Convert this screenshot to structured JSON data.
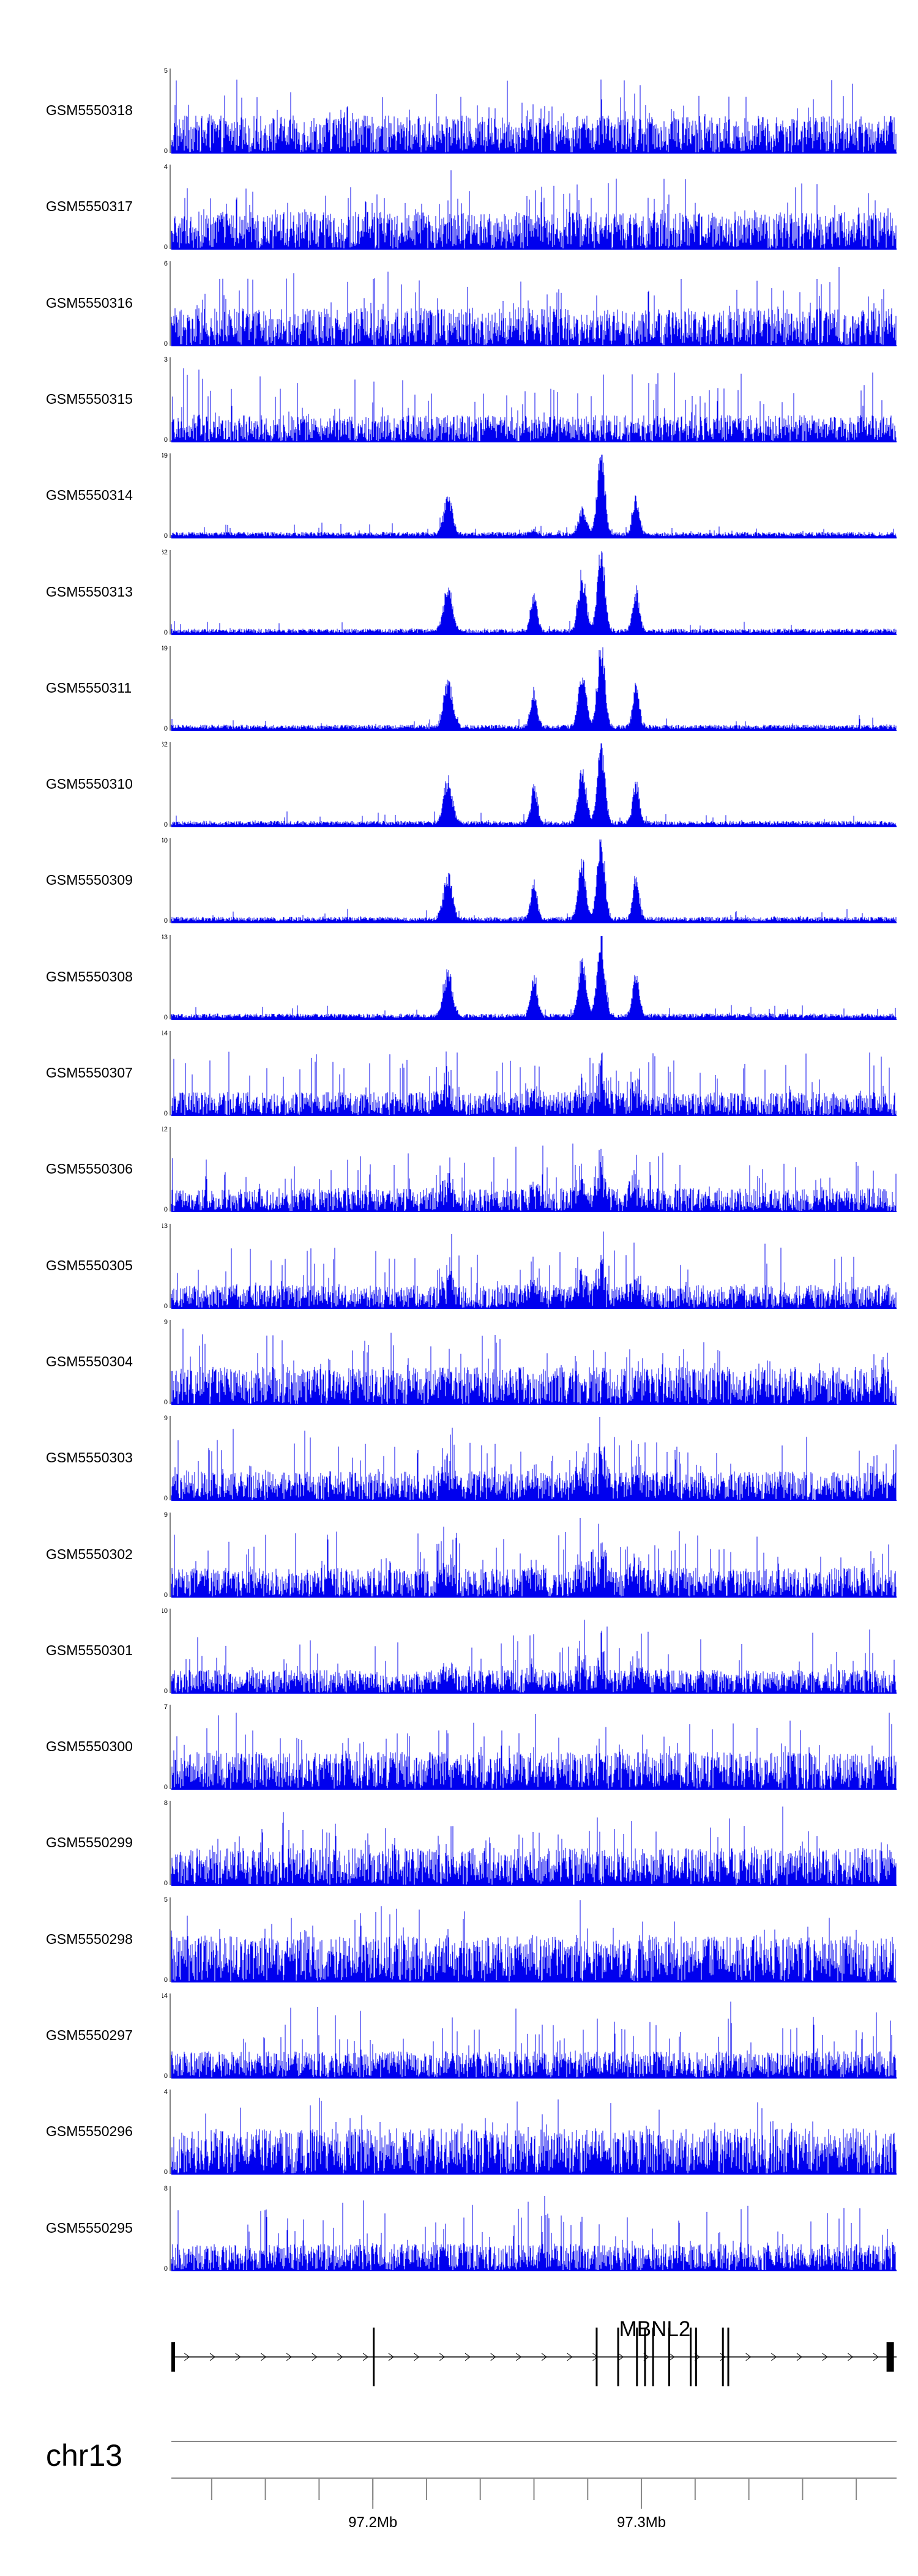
{
  "chart_data": {
    "type": "area",
    "tracks": [
      {
        "name": "GSM5550318",
        "ymax": "5",
        "ymin": "0",
        "profile": "noise"
      },
      {
        "name": "GSM5550317",
        "ymax": "4",
        "ymin": "0",
        "profile": "noise"
      },
      {
        "name": "GSM5550316",
        "ymax": "6",
        "ymin": "0",
        "profile": "noise"
      },
      {
        "name": "GSM5550315",
        "ymax": "3",
        "ymin": "0",
        "profile": "noise-light"
      },
      {
        "name": "GSM5550314",
        "ymax": "49",
        "ymin": "0",
        "profile": "peaks-a"
      },
      {
        "name": "GSM5550313",
        "ymax": "62",
        "ymin": "0",
        "profile": "peaks-b"
      },
      {
        "name": "GSM5550311",
        "ymax": "49",
        "ymin": "0",
        "profile": "peaks-b"
      },
      {
        "name": "GSM5550310",
        "ymax": "62",
        "ymin": "0",
        "profile": "peaks-b"
      },
      {
        "name": "GSM5550309",
        "ymax": "40",
        "ymin": "0",
        "profile": "peaks-b"
      },
      {
        "name": "GSM5550308",
        "ymax": "43",
        "ymin": "0",
        "profile": "peaks-b"
      },
      {
        "name": "GSM5550307",
        "ymax": "14",
        "ymin": "0",
        "profile": "mixed"
      },
      {
        "name": "GSM5550306",
        "ymax": "12",
        "ymin": "0",
        "profile": "mixed"
      },
      {
        "name": "GSM5550305",
        "ymax": "13",
        "ymin": "0",
        "profile": "mixed"
      },
      {
        "name": "GSM5550304",
        "ymax": "9",
        "ymin": "0",
        "profile": "noise"
      },
      {
        "name": "GSM5550303",
        "ymax": "9",
        "ymin": "0",
        "profile": "mixed-light"
      },
      {
        "name": "GSM5550302",
        "ymax": "9",
        "ymin": "0",
        "profile": "mixed-light"
      },
      {
        "name": "GSM5550301",
        "ymax": "10",
        "ymin": "0",
        "profile": "mixed"
      },
      {
        "name": "GSM5550300",
        "ymax": "7",
        "ymin": "0",
        "profile": "noise"
      },
      {
        "name": "GSM5550299",
        "ymax": "8",
        "ymin": "0",
        "profile": "noise"
      },
      {
        "name": "GSM5550298",
        "ymax": "5",
        "ymin": "0",
        "profile": "noise-dense"
      },
      {
        "name": "GSM5550297",
        "ymax": "14",
        "ymin": "0",
        "profile": "noise-light"
      },
      {
        "name": "GSM5550296",
        "ymax": "4",
        "ymin": "0",
        "profile": "noise-dense"
      },
      {
        "name": "GSM5550295",
        "ymax": "8",
        "ymin": "0",
        "profile": "noise-light"
      }
    ],
    "gene": {
      "name": "MBNL2",
      "start_mb": 97.125,
      "end_mb": 97.395,
      "exons_mb": [
        97.125,
        97.2,
        97.283,
        97.291,
        97.298,
        97.301,
        97.304,
        97.31,
        97.318,
        97.32,
        97.33,
        97.332,
        97.394
      ]
    },
    "axis": {
      "chromosome": "chr13",
      "start_mb": 97.125,
      "end_mb": 97.395,
      "major_ticks": [
        {
          "value": 97.2,
          "label": "97.2Mb"
        },
        {
          "value": 97.3,
          "label": "97.3Mb"
        }
      ],
      "minor_step_mb": 0.02
    },
    "peaks_mb": [
      97.228,
      97.26,
      97.278,
      97.285,
      97.298
    ],
    "colors": {
      "signal": "#0000ee",
      "axis": "#888888",
      "gene": "#000000"
    }
  }
}
